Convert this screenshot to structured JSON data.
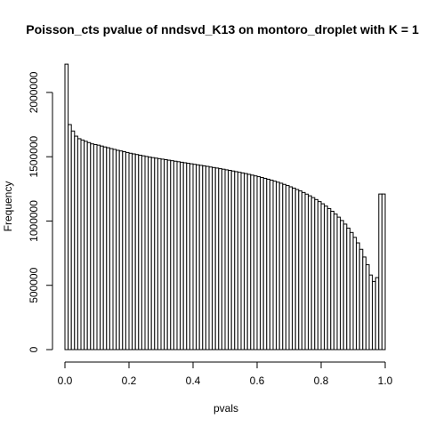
{
  "chart_data": {
    "type": "bar",
    "title": "Poisson_cts pvalue of nndsvd_K13 on montoro_droplet with K = 1",
    "xlabel": "pvals",
    "ylabel": "Frequency",
    "xlim": [
      0,
      1
    ],
    "ylim": [
      0,
      2200000
    ],
    "grid": false,
    "bin_width": 0.01,
    "x_ticks": [
      {
        "value": 0.0,
        "label": "0.0"
      },
      {
        "value": 0.2,
        "label": "0.2"
      },
      {
        "value": 0.4,
        "label": "0.4"
      },
      {
        "value": 0.6,
        "label": "0.6"
      },
      {
        "value": 0.8,
        "label": "0.8"
      },
      {
        "value": 1.0,
        "label": "1.0"
      }
    ],
    "y_ticks": [
      {
        "value": 0,
        "label": "0"
      },
      {
        "value": 500000,
        "label": "500000"
      },
      {
        "value": 1000000,
        "label": "1000000"
      },
      {
        "value": 1500000,
        "label": "1500000"
      },
      {
        "value": 2000000,
        "label": "2000000"
      }
    ],
    "values": [
      2220000,
      1750000,
      1700000,
      1660000,
      1640000,
      1630000,
      1620000,
      1610000,
      1600000,
      1595000,
      1590000,
      1583000,
      1576000,
      1570000,
      1563000,
      1557000,
      1550000,
      1545000,
      1539000,
      1533000,
      1527000,
      1522000,
      1517000,
      1512000,
      1507000,
      1502000,
      1497000,
      1493000,
      1489000,
      1485000,
      1481000,
      1477000,
      1473000,
      1469000,
      1465000,
      1461000,
      1457000,
      1453000,
      1449000,
      1445000,
      1441000,
      1437000,
      1433000,
      1429000,
      1425000,
      1420000,
      1416000,
      1412000,
      1407000,
      1403000,
      1398000,
      1394000,
      1389000,
      1384000,
      1379000,
      1374000,
      1369000,
      1363000,
      1357000,
      1351000,
      1345000,
      1339000,
      1332000,
      1325000,
      1318000,
      1310000,
      1302000,
      1294000,
      1285000,
      1276000,
      1266000,
      1256000,
      1245000,
      1234000,
      1222000,
      1209000,
      1196000,
      1182000,
      1167000,
      1151000,
      1134000,
      1116000,
      1097000,
      1076000,
      1054000,
      1030000,
      1004000,
      976000,
      945000,
      911000,
      873000,
      830000,
      780000,
      720000,
      660000,
      580000,
      530000,
      560000,
      1210000,
      1210000
    ]
  }
}
